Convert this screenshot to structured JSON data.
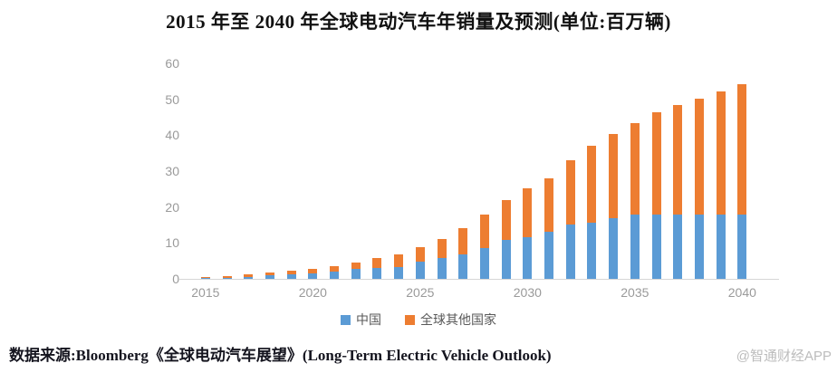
{
  "title": "2015 年至 2040 年全球电动汽车年销量及预测(单位:百万辆)",
  "source_note": "数据来源:Bloomberg《全球电动汽车展望》(Long-Term Electric Vehicle Outlook)",
  "watermark": "@智通财经APP",
  "colors": {
    "china": "#5B9BD5",
    "rest_of_world": "#ED7D31",
    "axis_label": "#9a9a9a",
    "baseline": "#d6d6d6",
    "legend_text": "#595959"
  },
  "legend": [
    {
      "label": "中国",
      "color": "#5B9BD5"
    },
    {
      "label": "全球其他国家",
      "color": "#ED7D31"
    }
  ],
  "chart_data": {
    "type": "bar",
    "stacked": true,
    "title": "2015 年至 2040 年全球电动汽车年销量及预测(单位:百万辆)",
    "unit": "百万辆 (million vehicles)",
    "categories": [
      2015,
      2016,
      2017,
      2018,
      2019,
      2020,
      2021,
      2022,
      2023,
      2024,
      2025,
      2026,
      2027,
      2028,
      2029,
      2030,
      2031,
      2032,
      2033,
      2034,
      2035,
      2036,
      2037,
      2038,
      2039,
      2040
    ],
    "series": [
      {
        "name": "中国",
        "color": "#5B9BD5",
        "values": [
          0.2,
          0.3,
          0.6,
          1.1,
          1.3,
          1.6,
          2.1,
          2.7,
          2.9,
          3.4,
          4.7,
          5.7,
          6.8,
          8.5,
          10.8,
          11.6,
          13.1,
          15.0,
          15.7,
          16.9,
          17.8,
          17.8,
          17.8,
          17.8,
          17.8,
          17.8
        ]
      },
      {
        "name": "全球其他国家",
        "color": "#ED7D31",
        "values": [
          0.2,
          0.4,
          0.6,
          0.7,
          1.0,
          1.1,
          1.4,
          1.9,
          3.0,
          3.4,
          4.0,
          5.3,
          7.2,
          9.5,
          11.2,
          13.6,
          15.0,
          18.0,
          21.4,
          23.4,
          25.6,
          28.6,
          30.5,
          32.4,
          34.5,
          36.5
        ]
      }
    ],
    "totals": [
      0.4,
      0.7,
      1.2,
      1.8,
      2.3,
      2.7,
      3.5,
      4.6,
      5.9,
      6.8,
      8.7,
      11.0,
      14.0,
      18.0,
      22.0,
      25.2,
      28.1,
      33.0,
      37.1,
      40.3,
      43.4,
      46.4,
      48.3,
      50.2,
      52.3,
      54.3
    ],
    "x_tick_labels": [
      "2015",
      "2020",
      "2025",
      "2030",
      "2035",
      "2040"
    ],
    "y_ticks": [
      0,
      10,
      20,
      30,
      40,
      50,
      60
    ],
    "ylim": [
      0,
      60
    ],
    "grid": false,
    "legend_position": "bottom"
  }
}
